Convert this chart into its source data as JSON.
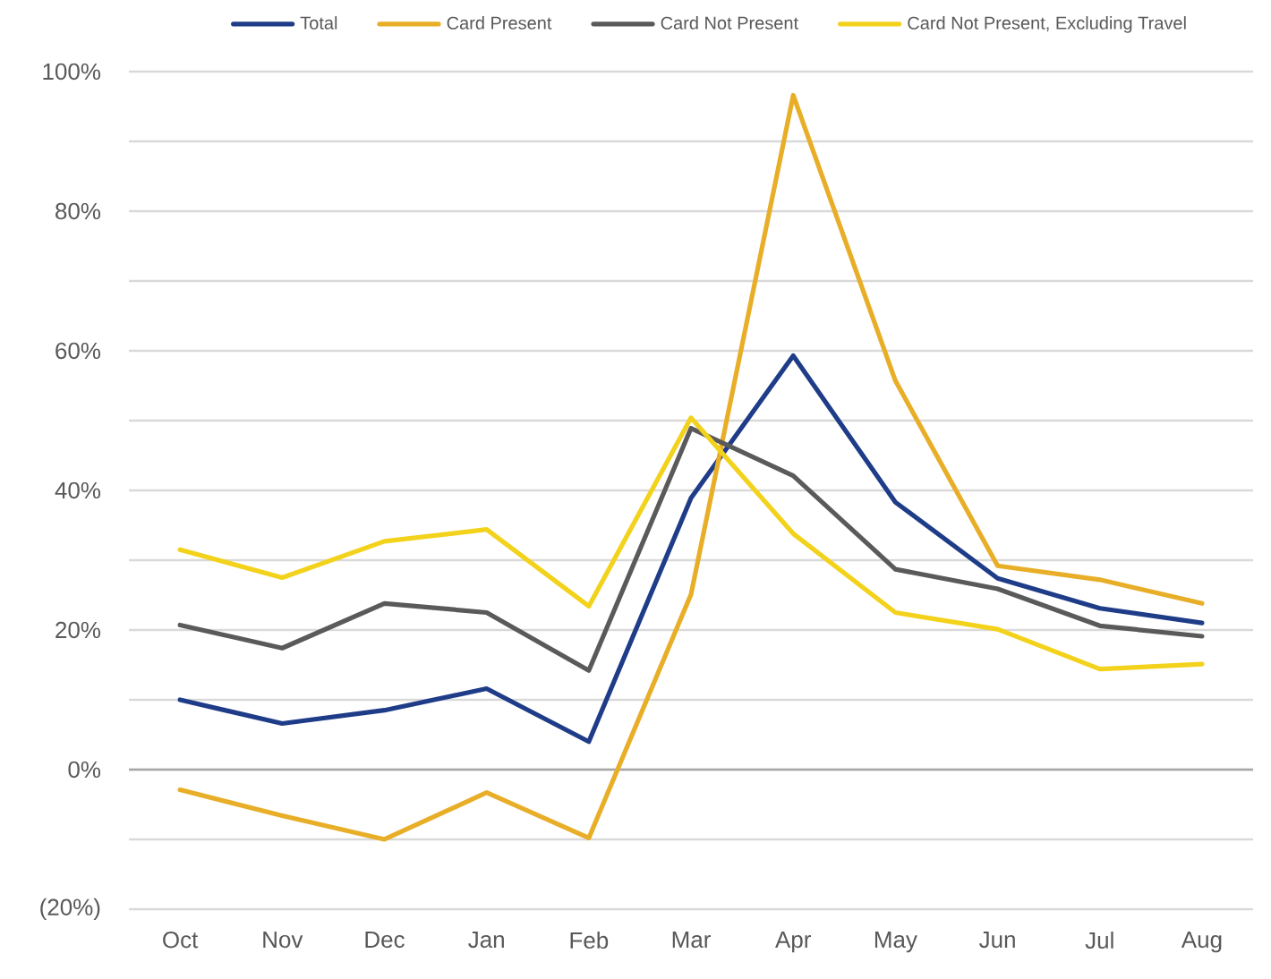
{
  "chart_data": {
    "type": "line",
    "categories": [
      "Oct",
      "Nov",
      "Dec",
      "Jan",
      "Feb",
      "Mar",
      "Apr",
      "May",
      "Jun",
      "Jul",
      "Aug"
    ],
    "series": [
      {
        "name": "Total",
        "color": "#1f3c88",
        "values": [
          10.0,
          6.6,
          8.5,
          11.6,
          4.0,
          38.9,
          59.3,
          38.3,
          27.4,
          23.1,
          21.0
        ]
      },
      {
        "name": "Card Present",
        "color": "#e8ae28",
        "values": [
          -2.9,
          -6.6,
          -10.0,
          -3.3,
          -9.8,
          25.1,
          96.6,
          55.7,
          29.2,
          27.2,
          23.8
        ]
      },
      {
        "name": "Card Not Present",
        "color": "#5a5a5a",
        "values": [
          20.7,
          17.4,
          23.8,
          22.5,
          14.2,
          48.9,
          42.1,
          28.7,
          25.9,
          20.6,
          19.1
        ]
      },
      {
        "name": "Card Not Present, Excluding Travel",
        "color": "#f3d21c",
        "values": [
          31.5,
          27.5,
          32.7,
          34.4,
          23.4,
          50.4,
          33.8,
          22.5,
          20.1,
          14.4,
          15.1
        ]
      }
    ],
    "ylim": [
      -20,
      100
    ],
    "yticks": [
      {
        "value": -20,
        "label": "(20%)"
      },
      {
        "value": -10,
        "label": null
      },
      {
        "value": 0,
        "label": "0%"
      },
      {
        "value": 10,
        "label": null
      },
      {
        "value": 20,
        "label": "20%"
      },
      {
        "value": 30,
        "label": null
      },
      {
        "value": 40,
        "label": "40%"
      },
      {
        "value": 50,
        "label": null
      },
      {
        "value": 60,
        "label": "60%"
      },
      {
        "value": 70,
        "label": null
      },
      {
        "value": 80,
        "label": "80%"
      },
      {
        "value": 90,
        "label": null
      },
      {
        "value": 100,
        "label": "100%"
      }
    ],
    "ref_lines": [
      {
        "axis": "y",
        "value": 0,
        "color": "#a6a6a6"
      }
    ],
    "grid": "y",
    "legend": "top",
    "marker": "none",
    "line_style": "solid"
  }
}
